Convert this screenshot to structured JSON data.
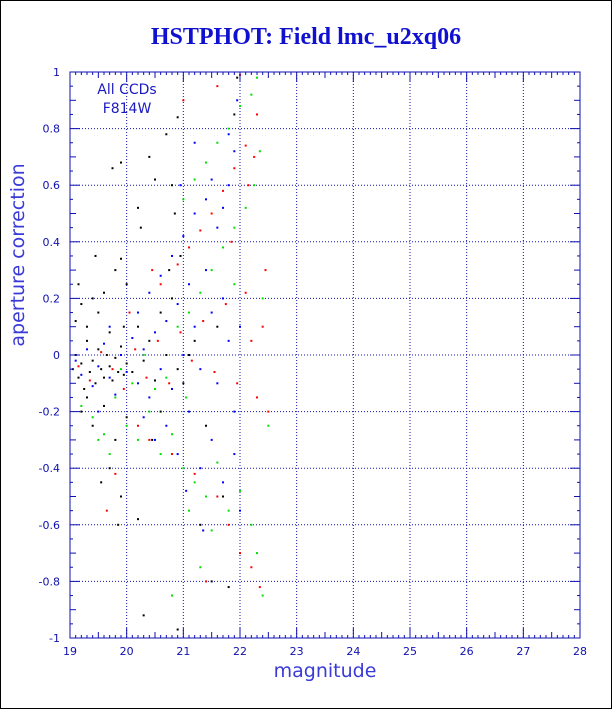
{
  "chart_data": {
    "type": "scatter",
    "title": "HSTPHOT: Field lmc_u2xq06",
    "xlabel": "magnitude",
    "ylabel": "aperture correction",
    "xlim": [
      19,
      28
    ],
    "ylim": [
      -1,
      1
    ],
    "x_ticks": [
      "19",
      "20",
      "21",
      "22",
      "23",
      "24",
      "25",
      "26",
      "27",
      "28"
    ],
    "y_ticks": [
      "-1",
      "-0.8",
      "-0.6",
      "-0.4",
      "-0.2",
      "0",
      "0.2",
      "0.4",
      "0.6",
      "0.8",
      "1"
    ],
    "x_tick_values": [
      19,
      20,
      21,
      22,
      23,
      24,
      25,
      26,
      27,
      28
    ],
    "y_tick_values": [
      -1,
      -0.8,
      -0.6,
      -0.4,
      -0.2,
      0,
      0.2,
      0.4,
      0.6,
      0.8,
      1
    ],
    "grid": true,
    "annotations": [
      "All CCDs",
      "F814W"
    ],
    "series": [
      {
        "color": "#000000",
        "points": [
          [
            19.05,
            -0.05
          ],
          [
            19.1,
            0.0
          ],
          [
            19.15,
            -0.08
          ],
          [
            19.2,
            -0.03
          ],
          [
            19.25,
            -0.12
          ],
          [
            19.3,
            0.05
          ],
          [
            19.35,
            -0.06
          ],
          [
            19.4,
            -0.02
          ],
          [
            19.45,
            -0.1
          ],
          [
            19.5,
            0.02
          ],
          [
            19.55,
            -0.05
          ],
          [
            19.6,
            -0.08
          ],
          [
            19.65,
            0.0
          ],
          [
            19.7,
            -0.04
          ],
          [
            19.75,
            -0.09
          ],
          [
            19.8,
            -0.01
          ],
          [
            19.85,
            -0.06
          ],
          [
            19.9,
            0.03
          ],
          [
            19.95,
            -0.07
          ],
          [
            20.0,
            -0.03
          ],
          [
            19.1,
            0.12
          ],
          [
            19.2,
            0.18
          ],
          [
            19.3,
            0.1
          ],
          [
            19.4,
            0.2
          ],
          [
            19.5,
            0.15
          ],
          [
            19.6,
            0.22
          ],
          [
            19.7,
            0.08
          ],
          [
            19.8,
            0.3
          ],
          [
            19.9,
            0.34
          ],
          [
            20.0,
            0.25
          ],
          [
            19.2,
            -0.2
          ],
          [
            19.4,
            -0.25
          ],
          [
            19.6,
            -0.18
          ],
          [
            19.8,
            -0.3
          ],
          [
            20.0,
            -0.22
          ],
          [
            19.3,
            -0.15
          ],
          [
            19.7,
            -0.4
          ],
          [
            19.9,
            -0.5
          ],
          [
            19.85,
            -0.6
          ],
          [
            20.2,
            -0.58
          ],
          [
            19.75,
            0.66
          ],
          [
            19.9,
            0.68
          ],
          [
            20.2,
            0.52
          ],
          [
            20.4,
            0.7
          ],
          [
            20.5,
            0.62
          ],
          [
            20.7,
            0.78
          ],
          [
            20.8,
            0.6
          ],
          [
            20.9,
            0.84
          ],
          [
            20.95,
            0.35
          ],
          [
            20.85,
            0.5
          ],
          [
            20.1,
            -0.06
          ],
          [
            20.3,
            -0.02
          ],
          [
            20.5,
            -0.09
          ],
          [
            20.7,
            0.0
          ],
          [
            20.9,
            -0.05
          ],
          [
            21.0,
            -0.1
          ],
          [
            20.2,
            0.1
          ],
          [
            20.4,
            0.05
          ],
          [
            20.6,
            0.15
          ],
          [
            20.8,
            0.2
          ],
          [
            20.3,
            -0.92
          ],
          [
            20.9,
            -0.97
          ],
          [
            21.5,
            -0.8
          ],
          [
            21.8,
            -0.82
          ],
          [
            21.95,
            0.98
          ],
          [
            21.9,
            0.85
          ],
          [
            21.6,
            0.1
          ],
          [
            21.2,
            0.05
          ],
          [
            21.4,
            -0.25
          ],
          [
            21.7,
            -0.5
          ],
          [
            19.45,
            0.35
          ],
          [
            19.15,
            0.25
          ],
          [
            20.45,
            -0.3
          ],
          [
            20.6,
            -0.2
          ],
          [
            19.55,
            -0.45
          ],
          [
            19.95,
            0.1
          ],
          [
            20.75,
            0.3
          ],
          [
            20.25,
            0.45
          ],
          [
            21.3,
            -0.6
          ],
          [
            21.1,
            0.0
          ]
        ]
      },
      {
        "color": "#0000ff",
        "points": [
          [
            19.1,
            -0.02
          ],
          [
            19.2,
            -0.07
          ],
          [
            19.3,
            0.02
          ],
          [
            19.4,
            -0.11
          ],
          [
            19.5,
            -0.04
          ],
          [
            19.6,
            0.04
          ],
          [
            19.7,
            -0.08
          ],
          [
            19.8,
            -0.14
          ],
          [
            19.9,
            0.0
          ],
          [
            20.0,
            -0.06
          ],
          [
            20.1,
            0.06
          ],
          [
            20.2,
            -0.1
          ],
          [
            20.3,
            0.02
          ],
          [
            20.4,
            -0.15
          ],
          [
            20.5,
            0.08
          ],
          [
            20.6,
            -0.05
          ],
          [
            20.7,
            0.12
          ],
          [
            20.8,
            -0.12
          ],
          [
            20.9,
            0.18
          ],
          [
            21.0,
            0.0
          ],
          [
            21.1,
            0.25
          ],
          [
            21.2,
            0.1
          ],
          [
            21.3,
            -0.05
          ],
          [
            21.4,
            0.3
          ],
          [
            21.5,
            0.15
          ],
          [
            21.6,
            -0.1
          ],
          [
            21.7,
            0.2
          ],
          [
            21.8,
            0.05
          ],
          [
            21.9,
            -0.2
          ],
          [
            22.0,
            0.1
          ],
          [
            20.2,
            0.15
          ],
          [
            20.4,
            0.22
          ],
          [
            20.6,
            0.28
          ],
          [
            20.8,
            0.35
          ],
          [
            21.0,
            0.42
          ],
          [
            21.2,
            0.5
          ],
          [
            21.4,
            0.55
          ],
          [
            21.6,
            0.45
          ],
          [
            21.8,
            0.6
          ],
          [
            21.9,
            0.72
          ],
          [
            20.3,
            -0.22
          ],
          [
            20.5,
            -0.3
          ],
          [
            20.7,
            -0.25
          ],
          [
            20.9,
            -0.35
          ],
          [
            21.1,
            -0.2
          ],
          [
            21.3,
            -0.4
          ],
          [
            21.5,
            -0.3
          ],
          [
            21.7,
            -0.45
          ],
          [
            21.9,
            -0.35
          ],
          [
            22.0,
            -0.55
          ],
          [
            21.2,
            0.75
          ],
          [
            21.5,
            0.62
          ],
          [
            21.8,
            0.78
          ],
          [
            21.95,
            0.9
          ],
          [
            21.7,
            0.52
          ],
          [
            20.95,
            0.6
          ],
          [
            21.05,
            -0.48
          ],
          [
            21.35,
            -0.62
          ],
          [
            19.5,
            -0.2
          ],
          [
            19.7,
            0.1
          ]
        ]
      },
      {
        "color": "#ff0000",
        "points": [
          [
            19.15,
            -0.04
          ],
          [
            19.35,
            -0.09
          ],
          [
            19.55,
            0.01
          ],
          [
            19.75,
            -0.05
          ],
          [
            19.95,
            -0.12
          ],
          [
            20.15,
            0.02
          ],
          [
            20.35,
            -0.08
          ],
          [
            20.55,
            0.05
          ],
          [
            20.75,
            -0.1
          ],
          [
            20.95,
            0.08
          ],
          [
            21.15,
            -0.02
          ],
          [
            21.35,
            0.12
          ],
          [
            21.55,
            -0.06
          ],
          [
            21.75,
            0.18
          ],
          [
            21.95,
            -0.1
          ],
          [
            22.1,
            0.22
          ],
          [
            22.2,
            0.05
          ],
          [
            22.3,
            -0.15
          ],
          [
            22.4,
            0.1
          ],
          [
            22.5,
            -0.2
          ],
          [
            20.6,
            0.25
          ],
          [
            20.9,
            0.32
          ],
          [
            21.1,
            0.38
          ],
          [
            21.3,
            0.44
          ],
          [
            21.5,
            0.5
          ],
          [
            21.7,
            0.58
          ],
          [
            21.9,
            0.66
          ],
          [
            22.1,
            0.74
          ],
          [
            22.25,
            0.7
          ],
          [
            22.3,
            0.85
          ],
          [
            20.2,
            -0.25
          ],
          [
            20.4,
            -0.3
          ],
          [
            20.8,
            -0.35
          ],
          [
            21.2,
            -0.42
          ],
          [
            21.6,
            -0.5
          ],
          [
            21.8,
            -0.6
          ],
          [
            22.0,
            -0.7
          ],
          [
            22.2,
            -0.75
          ],
          [
            22.35,
            -0.82
          ],
          [
            21.4,
            -0.8
          ],
          [
            21.0,
            0.9
          ],
          [
            21.6,
            0.95
          ],
          [
            22.0,
            0.99
          ],
          [
            22.15,
            0.6
          ],
          [
            21.85,
            0.4
          ],
          [
            19.8,
            -0.42
          ],
          [
            19.65,
            -0.55
          ],
          [
            20.05,
            0.15
          ],
          [
            20.45,
            0.3
          ],
          [
            22.45,
            0.3
          ]
        ]
      },
      {
        "color": "#00e000",
        "points": [
          [
            19.2,
            -0.18
          ],
          [
            19.4,
            -0.22
          ],
          [
            19.6,
            -0.28
          ],
          [
            19.8,
            -0.15
          ],
          [
            20.0,
            -0.25
          ],
          [
            20.2,
            -0.3
          ],
          [
            20.4,
            -0.2
          ],
          [
            20.6,
            -0.35
          ],
          [
            20.8,
            -0.28
          ],
          [
            21.0,
            -0.4
          ],
          [
            21.2,
            -0.45
          ],
          [
            21.4,
            -0.5
          ],
          [
            21.6,
            -0.38
          ],
          [
            21.8,
            -0.55
          ],
          [
            22.0,
            -0.48
          ],
          [
            22.2,
            -0.6
          ],
          [
            22.3,
            -0.7
          ],
          [
            22.4,
            -0.85
          ],
          [
            21.5,
            -0.62
          ],
          [
            21.3,
            -0.75
          ],
          [
            20.9,
            0.1
          ],
          [
            21.1,
            0.15
          ],
          [
            21.3,
            0.22
          ],
          [
            21.5,
            0.3
          ],
          [
            21.7,
            0.38
          ],
          [
            21.9,
            0.45
          ],
          [
            22.1,
            0.52
          ],
          [
            22.25,
            0.6
          ],
          [
            22.35,
            0.72
          ],
          [
            22.3,
            0.98
          ],
          [
            21.0,
            0.55
          ],
          [
            21.2,
            0.62
          ],
          [
            21.4,
            0.68
          ],
          [
            21.6,
            0.75
          ],
          [
            21.8,
            0.8
          ],
          [
            22.0,
            0.88
          ],
          [
            22.2,
            0.92
          ],
          [
            21.9,
            0.25
          ],
          [
            22.4,
            0.2
          ],
          [
            22.5,
            -0.25
          ],
          [
            19.5,
            -0.3
          ],
          [
            19.7,
            -0.35
          ],
          [
            19.9,
            -0.05
          ],
          [
            20.1,
            -0.1
          ],
          [
            20.3,
            0.0
          ],
          [
            20.5,
            -0.12
          ],
          [
            20.7,
            -0.08
          ],
          [
            21.05,
            -0.15
          ],
          [
            20.8,
            -0.85
          ],
          [
            21.1,
            -0.55
          ]
        ]
      }
    ]
  }
}
